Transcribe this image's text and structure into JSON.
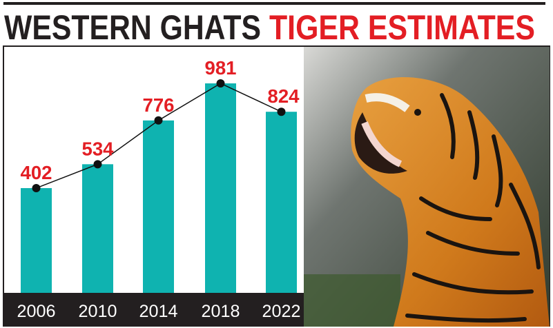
{
  "title": {
    "part1": "WESTERN GHATS",
    "part2": "TIGER ESTIMATES"
  },
  "colors": {
    "bar": "#0fb3b0",
    "label": "#e31e24",
    "title_dark": "#231f20",
    "axis_band": "#231f20",
    "line": "#111111"
  },
  "photo": {
    "subject": "roaring tiger",
    "icon": "tiger-photo"
  },
  "chart_data": {
    "type": "bar",
    "title": "WESTERN GHATS TIGER ESTIMATES",
    "categories": [
      "2006",
      "2010",
      "2014",
      "2018",
      "2022"
    ],
    "values": [
      402,
      534,
      776,
      981,
      824
    ],
    "overlay": "line connecting bar tops with dot markers",
    "data_labels": [
      "402",
      "534",
      "776",
      "981",
      "824"
    ],
    "xlabel": "",
    "ylabel": "",
    "grid": false,
    "legend": "none"
  }
}
